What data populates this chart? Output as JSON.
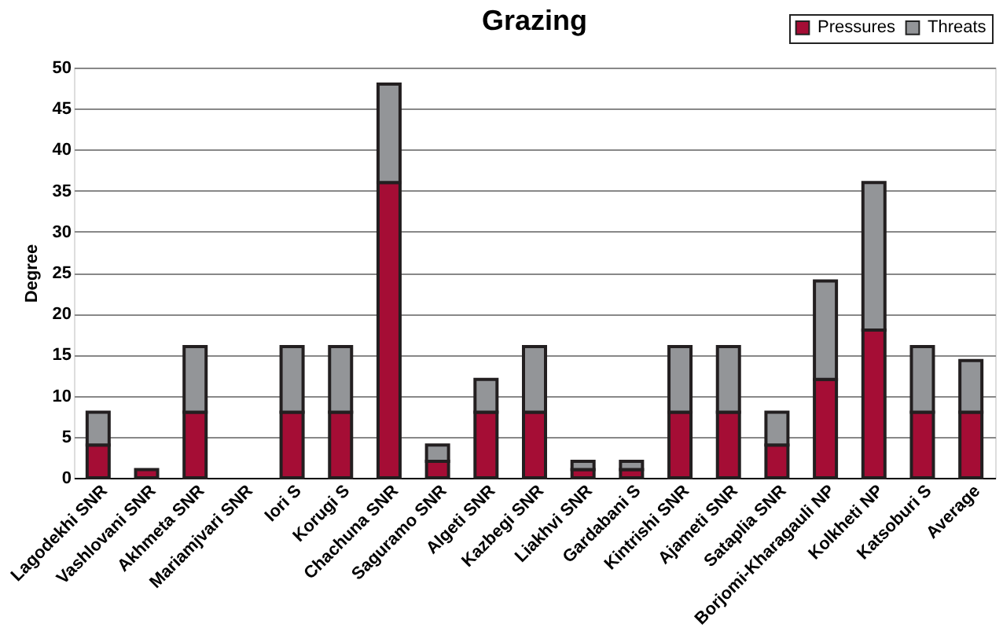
{
  "chart_data": {
    "type": "bar",
    "title": "Grazing",
    "ylabel": "Degree",
    "stacked": true,
    "categories": [
      "Lagodekhi SNR",
      "Vashlovani SNR",
      "Akhmeta SNR",
      "Mariamjvari SNR",
      "Iori S",
      "Korugi S",
      "Chachuna SNR",
      "Saguramo SNR",
      "Algeti SNR",
      "Kazbegi SNR",
      "Liakhvi SNR",
      "Gardabani S",
      "Kintrishi SNR",
      "Ajameti SNR",
      "Sataplia SNR",
      "Borjomi-Kharagauli NP",
      "Kolkheti NP",
      "Katsoburi S",
      "Average"
    ],
    "series": [
      {
        "name": "Pressures",
        "color": "#a50d35",
        "values": [
          4,
          1,
          8,
          0,
          8,
          8,
          36,
          2,
          8,
          8,
          1,
          1,
          8,
          8,
          4,
          12,
          18,
          8,
          8
        ]
      },
      {
        "name": "Threats",
        "color": "#939598",
        "values": [
          4,
          0,
          8,
          0,
          8,
          8,
          12,
          2,
          4,
          8,
          1,
          1,
          8,
          8,
          4,
          12,
          18,
          8,
          6.3
        ]
      }
    ],
    "ylim": [
      0,
      50
    ],
    "yticks": [
      0,
      5,
      10,
      15,
      20,
      25,
      30,
      35,
      40,
      45,
      50
    ],
    "grid": "y",
    "legend": "top right"
  }
}
